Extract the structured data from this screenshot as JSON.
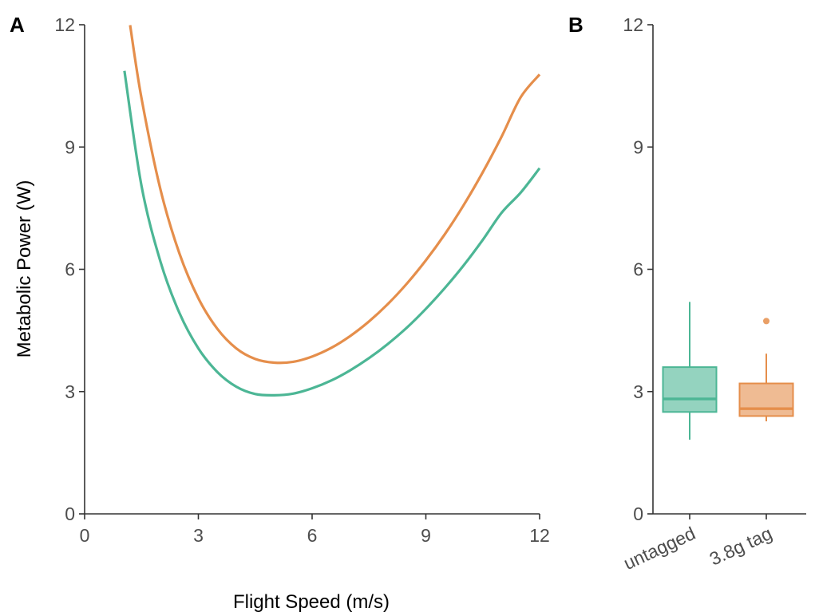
{
  "panel_a": {
    "letter": "A"
  },
  "panel_b": {
    "letter": "B"
  },
  "colors": {
    "untagged": "#4cb695",
    "tagged": "#e58e4b"
  },
  "chart_data": [
    {
      "type": "line",
      "panel": "A",
      "xlabel": "Flight Speed (m/s)",
      "ylabel": "Metabolic Power (W)",
      "xlim": [
        0,
        12
      ],
      "ylim": [
        0,
        12
      ],
      "xticks": [
        "0",
        "3",
        "6",
        "9",
        "12"
      ],
      "yticks": [
        "0",
        "3",
        "6",
        "9",
        "12"
      ],
      "grid": false,
      "series": [
        {
          "color": "#e58e4b",
          "x": [
            1.2,
            1.5,
            2,
            2.5,
            3,
            3.5,
            4,
            4.5,
            5,
            5.5,
            6,
            6.5,
            7,
            7.5,
            8,
            8.5,
            9,
            9.5,
            10,
            10.5,
            11,
            11.5,
            12
          ],
          "y": [
            11.99,
            10.2,
            7.96,
            6.39,
            5.29,
            4.54,
            4.06,
            3.8,
            3.71,
            3.73,
            3.86,
            4.07,
            4.36,
            4.72,
            5.15,
            5.65,
            6.22,
            6.86,
            7.58,
            8.38,
            9.26,
            10.22,
            10.78
          ]
        },
        {
          "color": "#4cb695",
          "x": [
            1.05,
            1.5,
            2,
            2.5,
            3,
            3.5,
            4,
            4.5,
            5,
            5.5,
            6,
            6.5,
            7,
            7.5,
            8,
            8.5,
            9,
            9.5,
            10,
            10.5,
            11,
            11.5,
            12
          ],
          "y": [
            10.87,
            8.05,
            6.19,
            4.93,
            4.06,
            3.48,
            3.12,
            2.94,
            2.91,
            2.95,
            3.08,
            3.27,
            3.52,
            3.82,
            4.17,
            4.57,
            5.03,
            5.54,
            6.1,
            6.72,
            7.39,
            7.88,
            8.48
          ]
        }
      ]
    },
    {
      "type": "box",
      "panel": "B",
      "ylim": [
        0,
        12
      ],
      "yticks": [
        "0",
        "3",
        "6",
        "9",
        "12"
      ],
      "categories": [
        "untagged",
        "3.8g tag"
      ],
      "grid": false,
      "boxes": [
        {
          "category": "untagged",
          "color": "#4cb695",
          "whisker_low": 1.82,
          "q1": 2.5,
          "median": 2.82,
          "q3": 3.6,
          "whisker_high": 5.2,
          "outliers": []
        },
        {
          "category": "3.8g tag",
          "color": "#e58e4b",
          "whisker_low": 2.27,
          "q1": 2.4,
          "median": 2.58,
          "q3": 3.2,
          "whisker_high": 3.93,
          "outliers": [
            4.73
          ]
        }
      ]
    }
  ]
}
